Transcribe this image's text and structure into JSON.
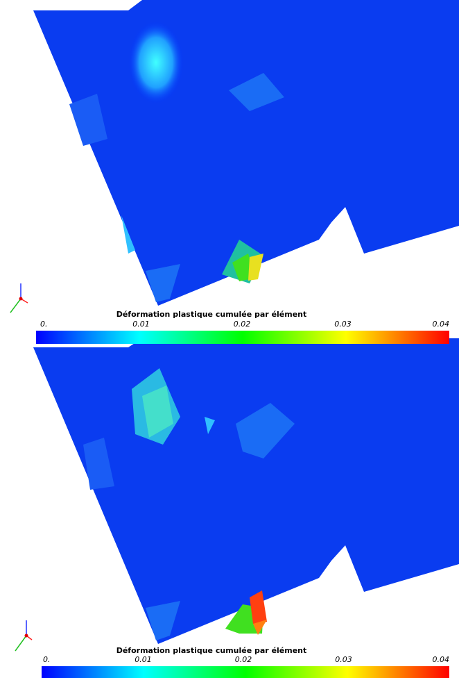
{
  "panels": [
    {
      "title": "Déformation plastique cumulée par élément",
      "colorbar": {
        "ticks": [
          "0.",
          "0.01",
          "0.02",
          "0.03",
          "0.04"
        ]
      }
    },
    {
      "title": "Déformation plastique cumulée par élément",
      "colorbar": {
        "ticks": [
          "0.",
          "0.01",
          "0.02",
          "0.03",
          "0.04"
        ]
      }
    }
  ]
}
